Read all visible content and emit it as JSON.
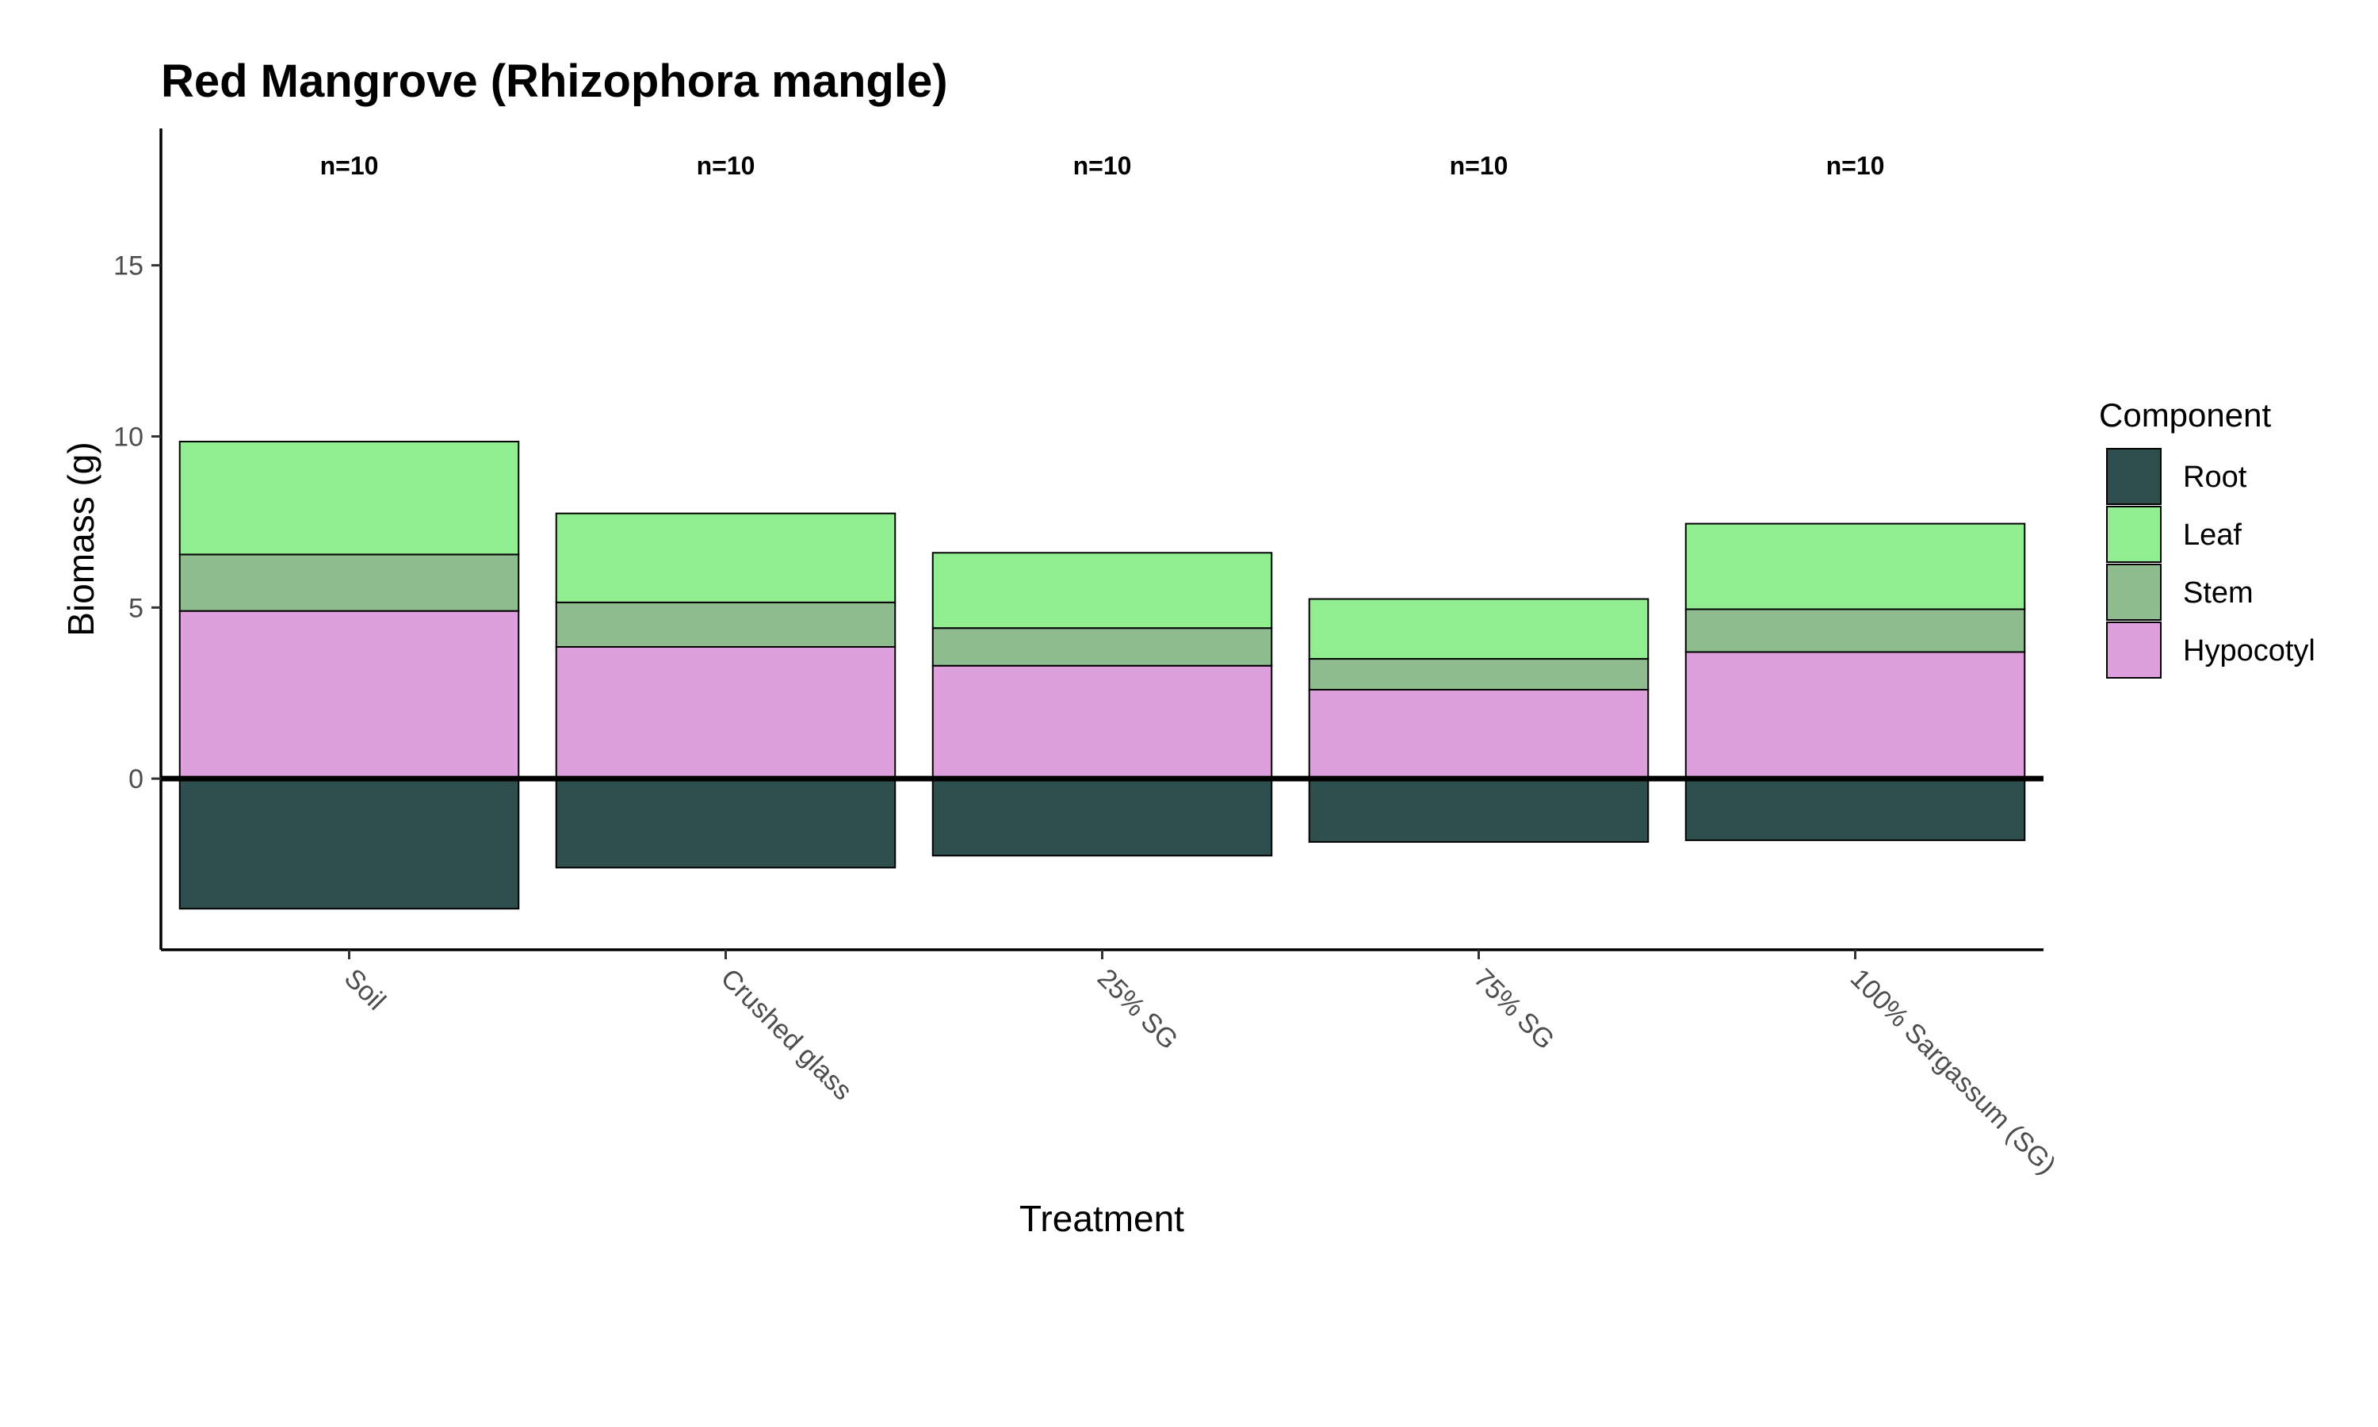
{
  "chart_data": {
    "type": "bar",
    "stacked": true,
    "title": "Red Mangrove (Rhizophora mangle)",
    "xlabel": "Treatment",
    "ylabel": "Biomass (g)",
    "categories": [
      "Soil",
      "Crushed glass",
      "25% SG",
      "75% SG",
      "100% Sargassum (SG)"
    ],
    "annotations": [
      "n=10",
      "n=10",
      "n=10",
      "n=10",
      "n=10"
    ],
    "yticks": [
      0,
      5,
      10,
      15
    ],
    "ylim": [
      -5,
      19
    ],
    "legend_title": "Component",
    "legend_position": "right",
    "grid": false,
    "series": [
      {
        "name": "Root",
        "color": "#2f4f4f",
        "values": [
          -3.8,
          -2.6,
          -2.25,
          -1.85,
          -1.8
        ]
      },
      {
        "name": "Leaf",
        "color": "#90ee90",
        "values": [
          3.3,
          2.6,
          2.2,
          1.75,
          2.5
        ]
      },
      {
        "name": "Stem",
        "color": "#8fbc8f",
        "values": [
          1.65,
          1.3,
          1.1,
          0.9,
          1.25
        ]
      },
      {
        "name": "Hypocotyl",
        "color": "#dda0dd",
        "values": [
          4.9,
          3.85,
          3.3,
          2.6,
          3.7
        ]
      }
    ],
    "stack_order": [
      "Hypocotyl",
      "Stem",
      "Leaf"
    ]
  }
}
